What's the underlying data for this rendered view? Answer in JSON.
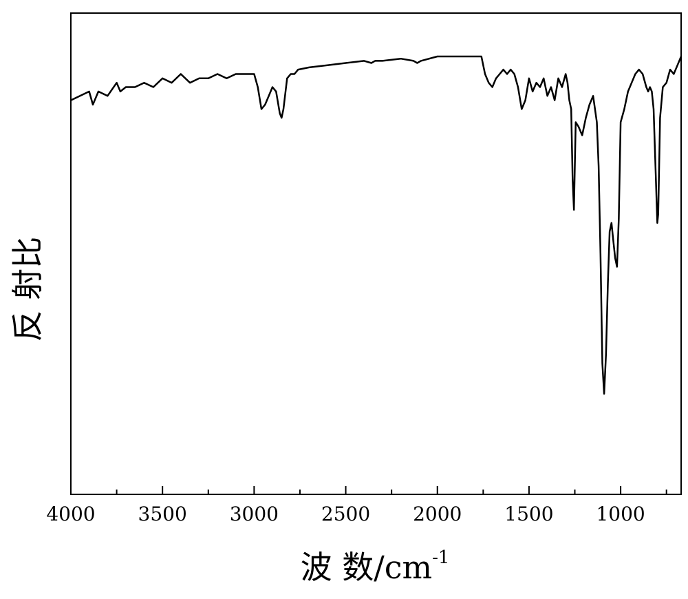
{
  "chart_data": {
    "type": "line",
    "title": "",
    "xlabel": "波 数/cm",
    "xlabel_superscript": "-1",
    "ylabel": "反 射比",
    "x_reversed": true,
    "xlim": [
      4000,
      670
    ],
    "ylim": [
      0,
      1
    ],
    "y_ticks_shown": false,
    "grid": false,
    "legend": "none",
    "x_ticks": [
      4000,
      3500,
      3000,
      2500,
      2000,
      1500,
      1000
    ],
    "x_tick_labels": [
      "4000",
      "3500",
      "3000",
      "2500",
      "2000",
      "1500",
      "1000"
    ],
    "line_color": "#000000",
    "series": [
      {
        "x": [
          4000,
          3950,
          3900,
          3880,
          3850,
          3800,
          3750,
          3730,
          3700,
          3650,
          3600,
          3550,
          3500,
          3450,
          3400,
          3350,
          3300,
          3250,
          3200,
          3150,
          3100,
          3050,
          3000,
          2980,
          2960,
          2940,
          2920,
          2900,
          2880,
          2860,
          2850,
          2840,
          2820,
          2800,
          2780,
          2760,
          2700,
          2600,
          2500,
          2400,
          2360,
          2340,
          2300,
          2200,
          2130,
          2110,
          2090,
          2000,
          1900,
          1800,
          1760,
          1740,
          1720,
          1700,
          1680,
          1660,
          1640,
          1620,
          1600,
          1580,
          1560,
          1540,
          1520,
          1500,
          1480,
          1460,
          1440,
          1420,
          1400,
          1380,
          1360,
          1340,
          1320,
          1300,
          1290,
          1280,
          1270,
          1262,
          1255,
          1245,
          1230,
          1210,
          1190,
          1170,
          1150,
          1130,
          1120,
          1110,
          1100,
          1090,
          1080,
          1070,
          1060,
          1050,
          1040,
          1030,
          1020,
          1010,
          1000,
          980,
          960,
          940,
          920,
          900,
          880,
          860,
          850,
          840,
          830,
          820,
          810,
          800,
          795,
          785,
          770,
          750,
          730,
          710,
          690,
          670
        ],
        "y": [
          0.9,
          0.91,
          0.92,
          0.89,
          0.92,
          0.91,
          0.94,
          0.92,
          0.93,
          0.93,
          0.94,
          0.93,
          0.95,
          0.94,
          0.96,
          0.94,
          0.95,
          0.95,
          0.96,
          0.95,
          0.96,
          0.96,
          0.96,
          0.93,
          0.88,
          0.89,
          0.91,
          0.93,
          0.92,
          0.87,
          0.86,
          0.88,
          0.95,
          0.96,
          0.96,
          0.97,
          0.975,
          0.98,
          0.985,
          0.99,
          0.985,
          0.99,
          0.99,
          0.995,
          0.99,
          0.985,
          0.99,
          1.0,
          1.0,
          1.0,
          1.0,
          0.96,
          0.94,
          0.93,
          0.95,
          0.96,
          0.97,
          0.96,
          0.97,
          0.96,
          0.93,
          0.88,
          0.9,
          0.95,
          0.92,
          0.94,
          0.93,
          0.95,
          0.91,
          0.93,
          0.9,
          0.95,
          0.93,
          0.96,
          0.94,
          0.9,
          0.88,
          0.72,
          0.65,
          0.85,
          0.84,
          0.82,
          0.86,
          0.89,
          0.91,
          0.85,
          0.75,
          0.55,
          0.3,
          0.23,
          0.32,
          0.48,
          0.6,
          0.62,
          0.58,
          0.54,
          0.52,
          0.63,
          0.85,
          0.88,
          0.92,
          0.94,
          0.96,
          0.97,
          0.96,
          0.93,
          0.92,
          0.93,
          0.92,
          0.88,
          0.75,
          0.62,
          0.64,
          0.86,
          0.93,
          0.94,
          0.97,
          0.96,
          0.98,
          1.0
        ]
      }
    ]
  }
}
